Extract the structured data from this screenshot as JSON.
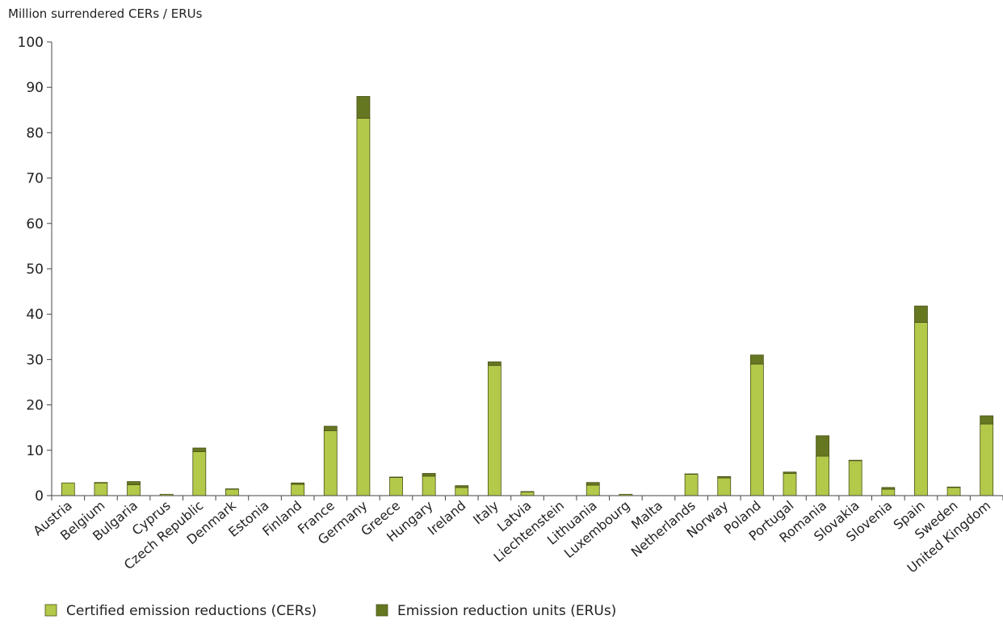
{
  "chart_data": {
    "type": "bar",
    "stacked": true,
    "title": "",
    "ylabel": "Million surrendered CERs / ERUs",
    "xlabel": "",
    "ylim": [
      0,
      100
    ],
    "yticks": [
      0,
      10,
      20,
      30,
      40,
      50,
      60,
      70,
      80,
      90,
      100
    ],
    "grid": false,
    "legend_position": "bottom-left",
    "categories": [
      "Austria",
      "Belgium",
      "Bulgaria",
      "Cyprus",
      "Czech Republic",
      "Denmark",
      "Estonia",
      "Finland",
      "France",
      "Germany",
      "Greece",
      "Hungary",
      "Ireland",
      "Italy",
      "Latvia",
      "Liechtenstein",
      "Lithuania",
      "Luxembourg",
      "Malta",
      "Netherlands",
      "Norway",
      "Poland",
      "Portugal",
      "Romania",
      "Slovakia",
      "Slovenia",
      "Spain",
      "Sweden",
      "United Kingdom"
    ],
    "series": [
      {
        "name": "Certified emission reductions (CERs)",
        "color": "#b2c94a",
        "values": [
          2.8,
          2.8,
          2.4,
          0.3,
          9.7,
          1.4,
          0,
          2.5,
          14.3,
          83.2,
          4.0,
          4.3,
          1.8,
          28.7,
          0.8,
          0,
          2.3,
          0.3,
          0,
          4.7,
          3.9,
          29.0,
          4.9,
          8.7,
          7.7,
          1.4,
          38.2,
          1.8,
          15.8
        ]
      },
      {
        "name": "Emission reduction units (ERUs)",
        "color": "#667722",
        "values": [
          0,
          0.1,
          0.7,
          0,
          0.8,
          0.1,
          0,
          0.3,
          1.0,
          4.8,
          0.1,
          0.6,
          0.4,
          0.8,
          0.1,
          0,
          0.6,
          0,
          0,
          0.1,
          0.3,
          2.0,
          0.3,
          4.5,
          0.1,
          0.4,
          3.6,
          0.1,
          1.8
        ]
      }
    ]
  }
}
